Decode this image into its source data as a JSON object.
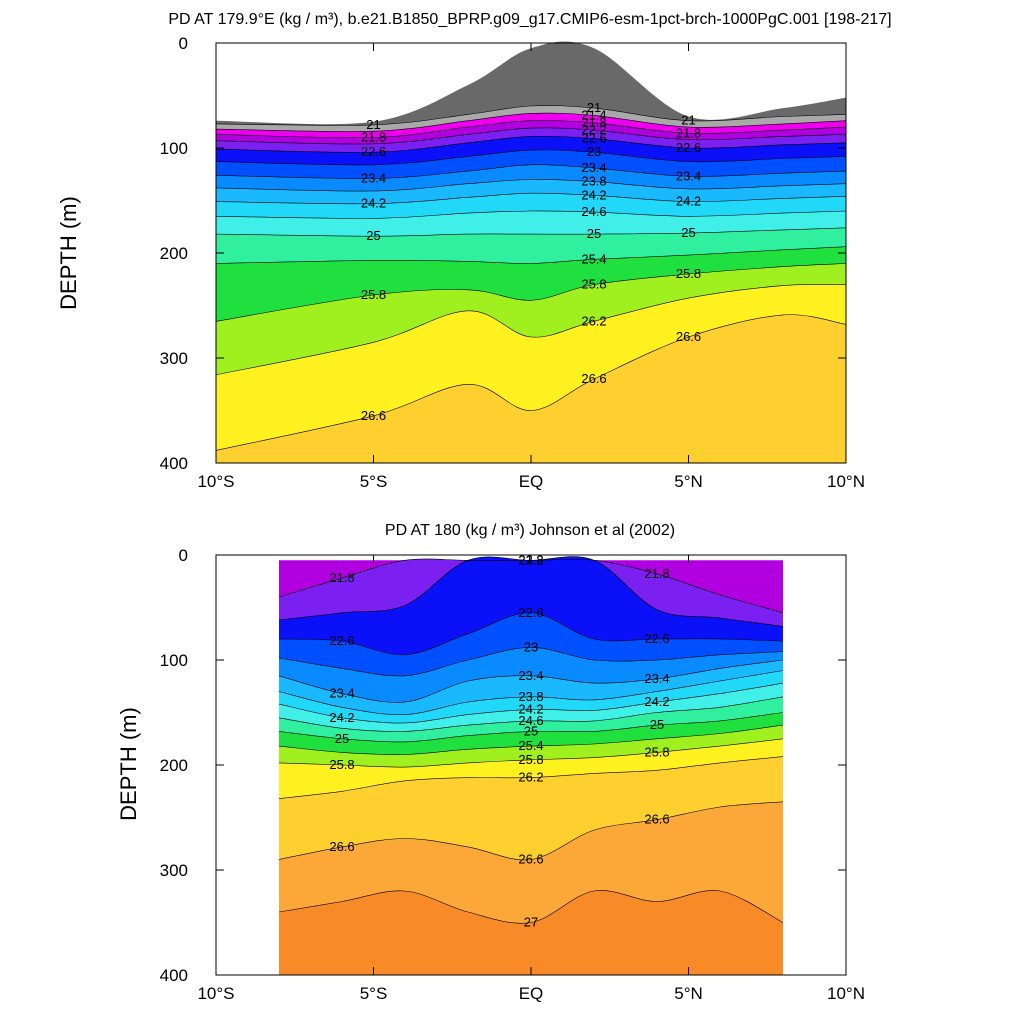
{
  "chart_data": [
    {
      "type": "contour",
      "title": "PD AT 179.9°E (kg / m³), b.e21.B1850_BPRP.g09_g17.CMIP6-esm-1pct-brch-1000PgC.001 [198-217]",
      "ylabel": "DEPTH (m)",
      "xlabel": "",
      "xlim": [
        -10,
        10
      ],
      "ylim": [
        0,
        400
      ],
      "y_reversed": true,
      "x_ticks": [
        -10,
        -5,
        0,
        5,
        10
      ],
      "x_tick_labels": [
        "10°S",
        "5°S",
        "EQ",
        "5°N",
        "10°N"
      ],
      "y_ticks": [
        0,
        100,
        200,
        300,
        400
      ],
      "y_tick_labels": [
        "0",
        "100",
        "200",
        "300",
        "400"
      ],
      "x": [
        -10,
        -5,
        -2,
        0,
        2,
        5,
        8,
        10
      ],
      "top": [
        74,
        75,
        40,
        5,
        5,
        70,
        62,
        52
      ],
      "series": [
        {
          "name": "21",
          "depth": [
            77,
            78,
            68,
            60,
            62,
            74,
            70,
            68
          ]
        },
        {
          "name": "21.4",
          "depth": [
            82,
            84,
            74,
            67,
            69,
            80,
            77,
            74
          ]
        },
        {
          "name": "21.8",
          "depth": [
            87,
            90,
            80,
            74,
            76,
            86,
            83,
            80
          ]
        },
        {
          "name": "22.2",
          "depth": [
            93,
            96,
            87,
            81,
            83,
            92,
            89,
            87
          ]
        },
        {
          "name": "22.6",
          "depth": [
            101,
            104,
            95,
            89,
            91,
            100,
            97,
            95
          ]
        },
        {
          "name": "23",
          "depth": [
            113,
            116,
            108,
            102,
            104,
            113,
            110,
            108
          ]
        },
        {
          "name": "23.4",
          "depth": [
            126,
            129,
            122,
            116,
            119,
            127,
            124,
            122
          ]
        },
        {
          "name": "23.8",
          "depth": [
            138,
            141,
            134,
            130,
            132,
            139,
            136,
            134
          ]
        },
        {
          "name": "24.2",
          "depth": [
            151,
            153,
            147,
            143,
            145,
            151,
            148,
            146
          ]
        },
        {
          "name": "24.6",
          "depth": [
            165,
            167,
            162,
            160,
            161,
            165,
            162,
            160
          ]
        },
        {
          "name": "25",
          "depth": [
            182,
            184,
            182,
            182,
            182,
            181,
            178,
            176
          ]
        },
        {
          "name": "25.4",
          "depth": [
            210,
            207,
            208,
            210,
            206,
            202,
            197,
            194
          ]
        },
        {
          "name": "25.8",
          "depth": [
            265,
            240,
            235,
            245,
            230,
            220,
            213,
            210
          ]
        },
        {
          "name": "26.2",
          "depth": [
            316,
            285,
            255,
            280,
            265,
            243,
            231,
            230
          ]
        },
        {
          "name": "26.6",
          "depth": [
            388,
            355,
            325,
            350,
            320,
            280,
            259,
            268
          ]
        }
      ]
    },
    {
      "type": "contour",
      "title": "PD AT 180 (kg / m³) Johnson et al (2002)",
      "ylabel": "DEPTH (m)",
      "xlabel": "",
      "xlim": [
        -10,
        10
      ],
      "ylim": [
        0,
        400
      ],
      "y_reversed": true,
      "data_xlim": [
        -8,
        8
      ],
      "x_ticks": [
        -10,
        -5,
        0,
        5,
        10
      ],
      "x_tick_labels": [
        "10°S",
        "5°S",
        "EQ",
        "5°N",
        "10°N"
      ],
      "y_ticks": [
        0,
        100,
        200,
        300,
        400
      ],
      "y_tick_labels": [
        "0",
        "100",
        "200",
        "300",
        "400"
      ],
      "x": [
        -8,
        -6,
        -4,
        -2,
        0,
        2,
        4,
        6,
        8
      ],
      "top": [
        5,
        5,
        5,
        5,
        5,
        5,
        5,
        5,
        5
      ],
      "series": [
        {
          "name": "21.8",
          "depth": [
            40,
            22,
            5,
            5,
            5,
            5,
            18,
            38,
            55
          ]
        },
        {
          "name": "22.2",
          "depth": [
            62,
            55,
            48,
            5,
            5,
            5,
            52,
            60,
            68
          ]
        },
        {
          "name": "22.6",
          "depth": [
            80,
            82,
            95,
            75,
            55,
            80,
            80,
            80,
            82
          ]
        },
        {
          "name": "23",
          "depth": [
            98,
            108,
            115,
            100,
            88,
            100,
            100,
            95,
            92
          ]
        },
        {
          "name": "23.4",
          "depth": [
            115,
            132,
            140,
            120,
            115,
            122,
            118,
            108,
            100
          ]
        },
        {
          "name": "23.8",
          "depth": [
            130,
            145,
            152,
            140,
            135,
            138,
            130,
            120,
            110
          ]
        },
        {
          "name": "24.2",
          "depth": [
            142,
            155,
            160,
            152,
            147,
            148,
            140,
            132,
            122
          ]
        },
        {
          "name": "24.6",
          "depth": [
            155,
            165,
            168,
            162,
            158,
            158,
            150,
            145,
            135
          ]
        },
        {
          "name": "25",
          "depth": [
            168,
            175,
            178,
            172,
            168,
            168,
            162,
            158,
            150
          ]
        },
        {
          "name": "25.4",
          "depth": [
            182,
            188,
            190,
            185,
            182,
            180,
            175,
            170,
            162
          ]
        },
        {
          "name": "25.8",
          "depth": [
            198,
            200,
            202,
            198,
            195,
            193,
            188,
            182,
            175
          ]
        },
        {
          "name": "26.2",
          "depth": [
            232,
            225,
            215,
            212,
            212,
            208,
            205,
            198,
            192
          ]
        },
        {
          "name": "26.6",
          "depth": [
            290,
            278,
            270,
            278,
            290,
            262,
            252,
            240,
            235
          ]
        },
        {
          "name": "27",
          "depth": [
            340,
            330,
            320,
            340,
            350,
            320,
            330,
            320,
            350
          ]
        }
      ]
    }
  ],
  "colors": {
    "above": "#696969",
    "levels": [
      "#a9a9a9",
      "#ee00ee",
      "#b000e0",
      "#7b20f0",
      "#0a10f8",
      "#0050ff",
      "#0a8aff",
      "#19b8ff",
      "#22d8f8",
      "#40f0e8",
      "#30f0a0",
      "#20e040",
      "#a0f020",
      "#fff020",
      "#fdd030",
      "#fba838",
      "#f88a28",
      "#f4640c",
      "#f03808",
      "#e80808",
      "#c90000"
    ]
  }
}
